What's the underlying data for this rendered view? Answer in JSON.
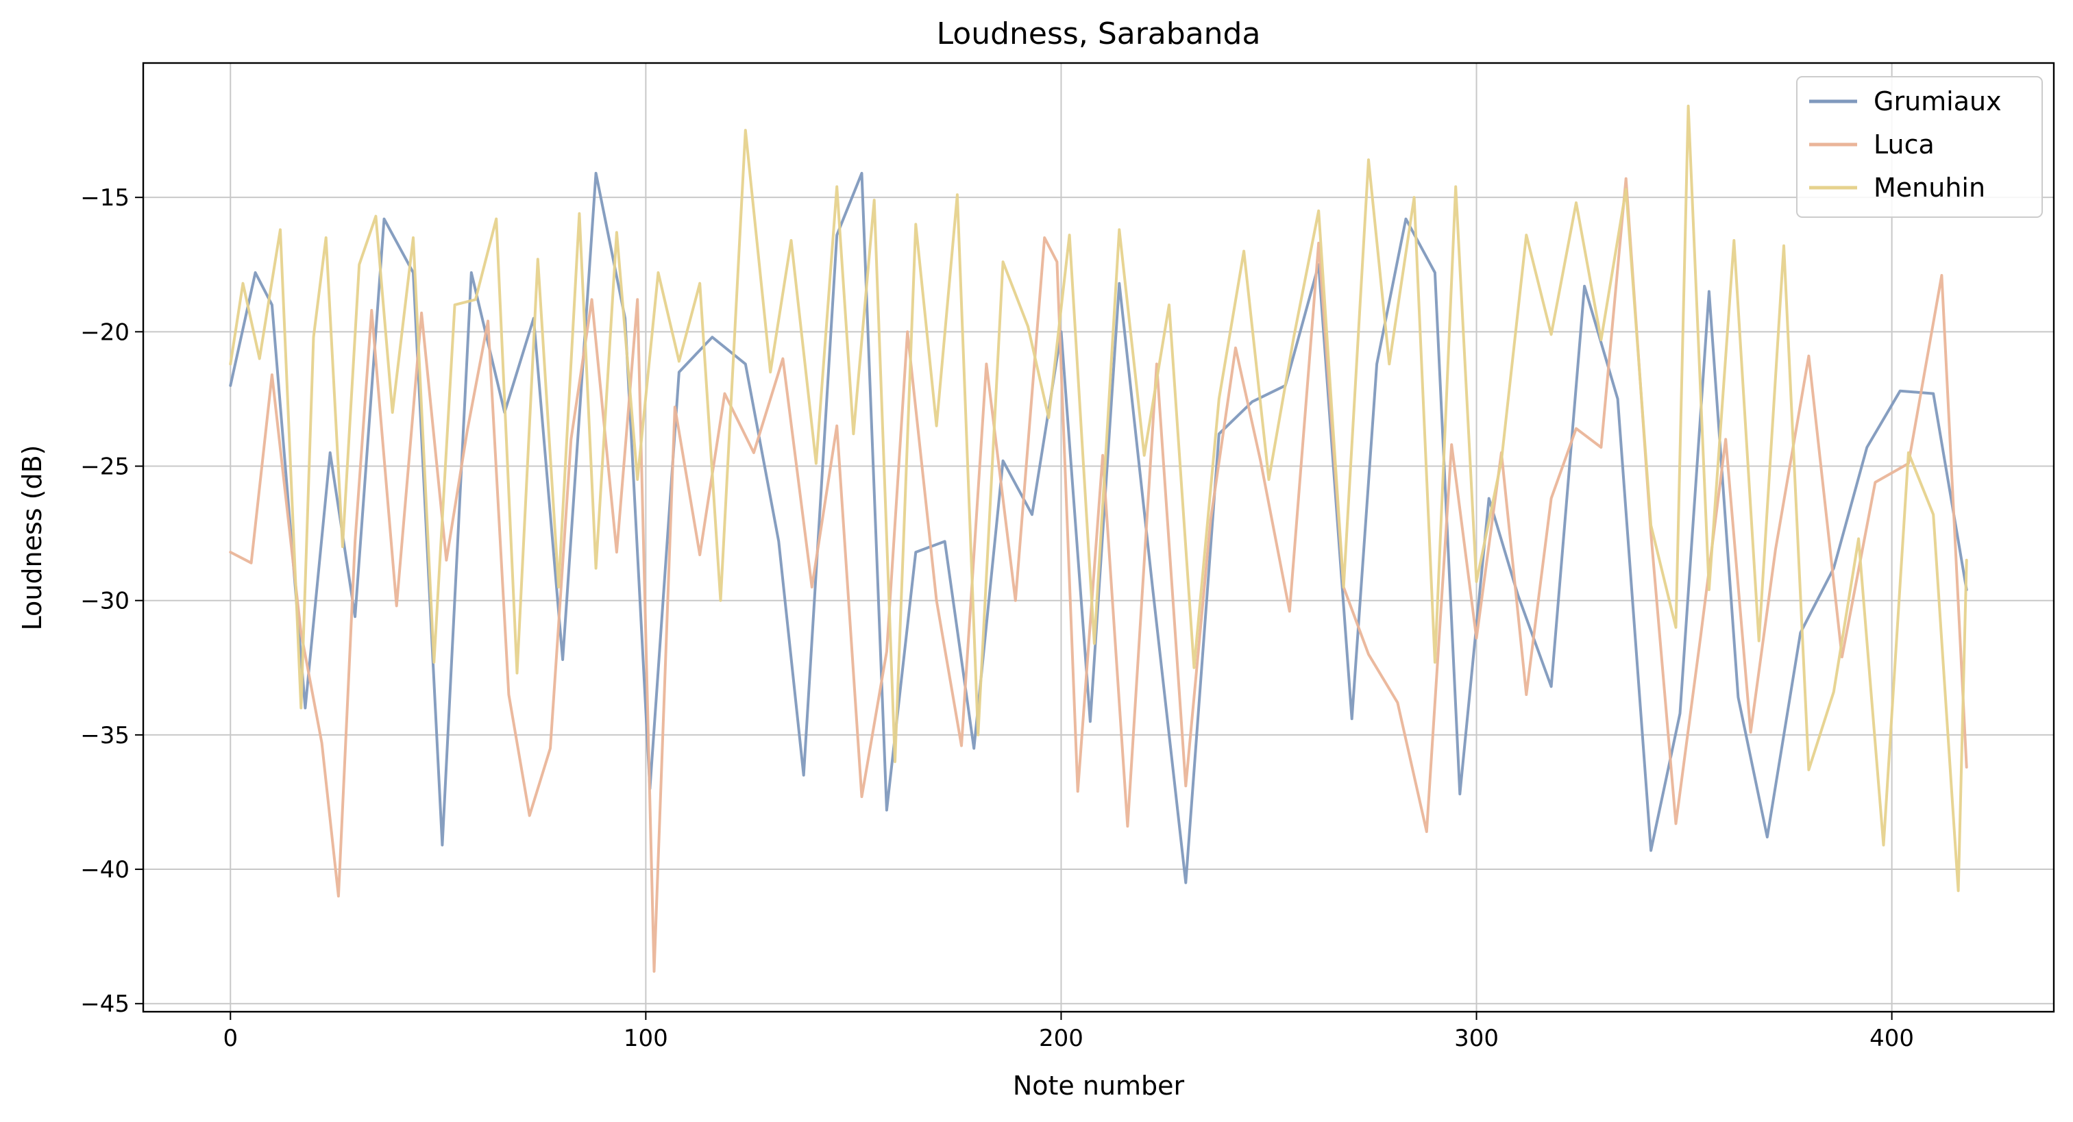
{
  "chart_data": {
    "type": "line",
    "title": "Loudness, Sarabanda",
    "xlabel": "Note number",
    "ylabel": "Loudness (dB)",
    "xlim": [
      -21,
      439
    ],
    "ylim": [
      -45.3,
      -10
    ],
    "xticks": [
      0,
      100,
      200,
      300,
      400
    ],
    "yticks": [
      -45,
      -40,
      -35,
      -30,
      -25,
      -20,
      -15
    ],
    "xtick_labels": [
      "0",
      "100",
      "200",
      "300",
      "400"
    ],
    "ytick_labels": [
      "−45",
      "−40",
      "−35",
      "−30",
      "−25",
      "−20",
      "−15"
    ],
    "grid": true,
    "legend_position": "top-right",
    "series": [
      {
        "name": "Grumiaux",
        "color": "#8099bd",
        "x": [
          0,
          6,
          10,
          18,
          24,
          30,
          37,
          44,
          51,
          58,
          66,
          73,
          80,
          88,
          95,
          101,
          108,
          116,
          124,
          132,
          138,
          146,
          152,
          158,
          165,
          172,
          179,
          186,
          193,
          200,
          207,
          214,
          222,
          230,
          238,
          246,
          254,
          262,
          270,
          276,
          283,
          290,
          296,
          303,
          310,
          318,
          326,
          334,
          342,
          349,
          356,
          363,
          370,
          378,
          386,
          394,
          402,
          410,
          418
        ],
        "values": [
          -22,
          -17.8,
          -19,
          -34,
          -24.5,
          -30.6,
          -15.8,
          -17.8,
          -39.1,
          -17.8,
          -23,
          -19.5,
          -32.2,
          -14.1,
          -19.5,
          -37,
          -21.5,
          -20.2,
          -21.2,
          -27.8,
          -36.5,
          -16.4,
          -14.1,
          -37.8,
          -28.2,
          -27.8,
          -35.5,
          -24.8,
          -26.8,
          -20,
          -34.5,
          -18.2,
          -29.5,
          -40.5,
          -23.8,
          -22.6,
          -22,
          -17.5,
          -34.4,
          -21.2,
          -15.8,
          -17.8,
          -37.2,
          -26.2,
          -29.8,
          -33.2,
          -18.3,
          -22.5,
          -39.3,
          -34.2,
          -18.5,
          -33.6,
          -38.8,
          -31.2,
          -28.8,
          -24.3,
          -22.2,
          -22.3,
          -29.6
        ]
      },
      {
        "name": "Luca",
        "color": "#eab599",
        "x": [
          0,
          5,
          10,
          17,
          22,
          26,
          30,
          34,
          40,
          46,
          52,
          57,
          62,
          67,
          72,
          77,
          82,
          87,
          93,
          98,
          102,
          107,
          113,
          119,
          126,
          133,
          140,
          146,
          152,
          158,
          163,
          170,
          176,
          182,
          189,
          196,
          199,
          204,
          210,
          216,
          223,
          230,
          236,
          242,
          248,
          255,
          262,
          268,
          274,
          281,
          288,
          294,
          300,
          306,
          312,
          318,
          324,
          330,
          336,
          342,
          348,
          354,
          360,
          366,
          372,
          380,
          388,
          396,
          404,
          412,
          418
        ],
        "values": [
          -28.2,
          -28.6,
          -21.6,
          -31.2,
          -35.3,
          -41,
          -27.8,
          -19.2,
          -30.2,
          -19.3,
          -28.5,
          -23.7,
          -19.6,
          -33.5,
          -38,
          -35.5,
          -24,
          -18.8,
          -28.2,
          -18.8,
          -43.8,
          -22.8,
          -28.3,
          -22.3,
          -24.5,
          -21,
          -29.5,
          -23.5,
          -37.3,
          -31.9,
          -20,
          -30,
          -35.4,
          -21.2,
          -30,
          -16.5,
          -17.4,
          -37.1,
          -24.6,
          -38.4,
          -21.2,
          -36.9,
          -27,
          -20.6,
          -24.8,
          -30.4,
          -16.7,
          -29.5,
          -32,
          -33.8,
          -38.6,
          -24.2,
          -31.4,
          -24.5,
          -33.5,
          -26.2,
          -23.6,
          -24.3,
          -14.3,
          -27.5,
          -38.3,
          -31.3,
          -24,
          -34.9,
          -28.1,
          -20.9,
          -32.1,
          -25.6,
          -24.9,
          -17.9,
          -36.2
        ]
      },
      {
        "name": "Menuhin",
        "color": "#e6d28d",
        "x": [
          0,
          3,
          7,
          12,
          17,
          20,
          23,
          27,
          31,
          35,
          39,
          44,
          49,
          54,
          59,
          64,
          69,
          74,
          79,
          84,
          88,
          93,
          98,
          103,
          108,
          113,
          118,
          124,
          130,
          135,
          141,
          146,
          150,
          155,
          160,
          165,
          170,
          175,
          180,
          186,
          192,
          197,
          202,
          208,
          214,
          220,
          226,
          232,
          238,
          244,
          250,
          256,
          262,
          268,
          274,
          279,
          285,
          290,
          295,
          300,
          306,
          312,
          318,
          324,
          330,
          336,
          342,
          348,
          351,
          356,
          362,
          368,
          374,
          380,
          386,
          392,
          398,
          404,
          410,
          416,
          418
        ],
        "values": [
          -21.2,
          -18.2,
          -21,
          -16.2,
          -34,
          -20.2,
          -16.5,
          -28,
          -17.5,
          -15.7,
          -23,
          -16.5,
          -32.3,
          -19,
          -18.8,
          -15.8,
          -32.7,
          -17.3,
          -29.5,
          -15.6,
          -28.8,
          -16.3,
          -25.5,
          -17.8,
          -21.1,
          -18.2,
          -30,
          -12.5,
          -21.5,
          -16.6,
          -24.9,
          -14.6,
          -23.8,
          -15.1,
          -36,
          -16,
          -23.5,
          -14.9,
          -35,
          -17.4,
          -19.8,
          -23.2,
          -16.4,
          -31.6,
          -16.2,
          -24.6,
          -19,
          -32.5,
          -22.5,
          -17,
          -25.5,
          -20.2,
          -15.5,
          -29.5,
          -13.6,
          -21.2,
          -15,
          -32.3,
          -14.6,
          -29.3,
          -24.8,
          -16.4,
          -20.1,
          -15.2,
          -20.3,
          -14.7,
          -27.2,
          -31,
          -11.6,
          -29.6,
          -16.6,
          -31.5,
          -16.8,
          -36.3,
          -33.4,
          -27.7,
          -39.1,
          -24.5,
          -26.8,
          -40.8,
          -28.5
        ]
      }
    ]
  }
}
